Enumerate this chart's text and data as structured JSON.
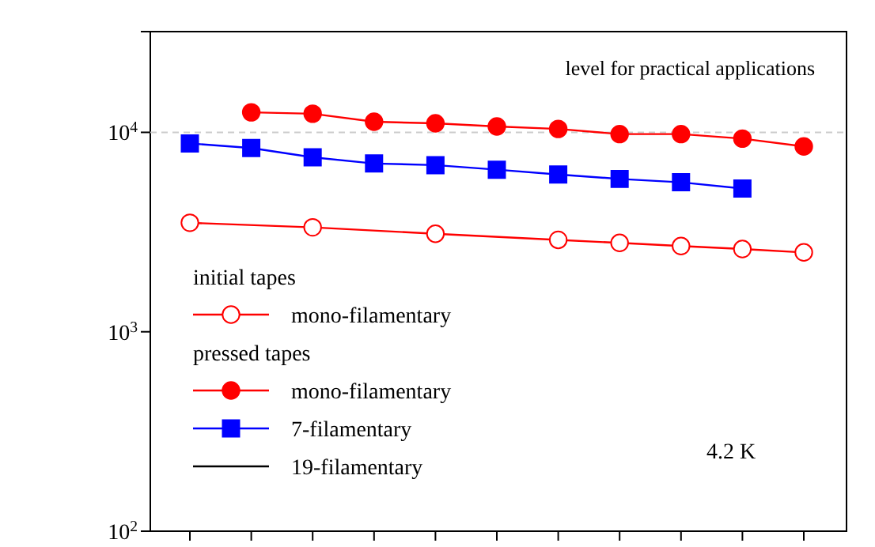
{
  "chart_data": {
    "type": "line",
    "categories": [
      null,
      null,
      null,
      null,
      null,
      null,
      null,
      null,
      null,
      null,
      null
    ],
    "series": [
      {
        "name": "mono-filamentary",
        "color": "#ff0000",
        "marker": "circle",
        "values": [
          3520,
          null,
          3340,
          null,
          3100,
          null,
          2890,
          2790,
          2690,
          2600,
          2500
        ]
      },
      {
        "name": "mono-filamentary",
        "color": "#ff0000",
        "marker": "circle",
        "values": [
          null,
          12600,
          12400,
          11300,
          11100,
          10700,
          10400,
          9800,
          9800,
          9300,
          8500
        ]
      },
      {
        "name": "7-filamentary",
        "color": "#0000ff",
        "marker": "square",
        "values": [
          8800,
          8350,
          7500,
          6980,
          6850,
          6500,
          6150,
          5840,
          5620,
          5230,
          null
        ]
      },
      {
        "name": "19-filamentary",
        "color": "#000000",
        "marker": "none",
        "values": [
          null,
          null,
          null,
          null,
          null,
          null,
          null,
          null,
          null,
          null,
          null
        ]
      }
    ],
    "log": "y",
    "ylim": [
      100,
      32000
    ],
    "yticks": [
      {
        "value": 100,
        "label": "10$^{2}$"
      },
      {
        "value": 1000,
        "label": "10$^{3}$"
      },
      {
        "value": 10000,
        "label": "10$^{4}$"
      }
    ],
    "tick_labels": "y",
    "legend": "bottom left",
    "grid": false,
    "ref_lines": [
      {
        "axis": "y",
        "value": 10000,
        "label": "level for practical applications",
        "color": "#cccccc",
        "line_style": "dashed"
      }
    ],
    "annotations": [
      "initial tapes",
      "pressed tapes",
      "4.2 K"
    ]
  }
}
